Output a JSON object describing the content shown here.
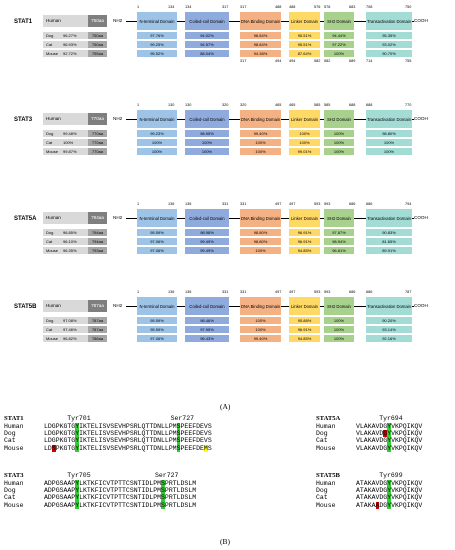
{
  "panel_a_caption": "(A)",
  "panel_b_caption": "(B)",
  "labels": {
    "nh2": "NH2",
    "cooh": "COOH",
    "species_header": "Human"
  },
  "domain_names": {
    "nt": "N-terminal Domain",
    "cc": "Coiled-coil Domain",
    "db": "DNA Binding Domain",
    "lk": "Linker Domain",
    "sh": "SH2 Domain",
    "ta": "Transactivation Domain"
  },
  "stat1": {
    "name": "STAT1",
    "human_aa": "750aa",
    "top_pos": [
      "1",
      "134",
      "134",
      "317",
      "317",
      "488",
      "488",
      "576",
      "576",
      "683",
      "708",
      "750"
    ],
    "bottom_pos": [
      "317",
      "494",
      "494",
      "582",
      "582",
      "689",
      "714",
      "755"
    ],
    "species": [
      {
        "name": "Dog",
        "pct": "96.27%",
        "aa": "750aa",
        "vals": [
          "97.76%",
          "94.02%",
          "98.84%",
          "95.51%",
          "94.44%",
          "95.35%"
        ]
      },
      {
        "name": "Cat",
        "pct": "96.93%",
        "aa": "750aa",
        "vals": [
          "99.25%",
          "94.57%",
          "98.84%",
          "95.51%",
          "97.22%",
          "93.02%"
        ]
      },
      {
        "name": "Mouse",
        "pct": "92.72%",
        "aa": "755aa",
        "vals": [
          "95.52%",
          "88.04%",
          "94.38%",
          "87.64%",
          "100%",
          "90.70%"
        ]
      }
    ]
  },
  "stat3": {
    "name": "STAT3",
    "human_aa": "770aa",
    "top_pos": [
      "1",
      "130",
      "130",
      "320",
      "320",
      "465",
      "465",
      "585",
      "585",
      "688",
      "688",
      "770"
    ],
    "species": [
      {
        "name": "Dog",
        "pct": "99.48%",
        "aa": "770aa",
        "vals": [
          "99.23%",
          "98.95%",
          "99.40%",
          "100%",
          "100%",
          "98.80%"
        ]
      },
      {
        "name": "Cat",
        "pct": "100%",
        "aa": "770aa",
        "vals": [
          "100%",
          "100%",
          "100%",
          "100%",
          "100%",
          "100%"
        ]
      },
      {
        "name": "Mouse",
        "pct": "99.87%",
        "aa": "770aa",
        "vals": [
          "100%",
          "100%",
          "100%",
          "99.01%",
          "100%",
          "100%"
        ]
      }
    ]
  },
  "stat5a": {
    "name": "STAT5A",
    "human_aa": "794aa",
    "top_pos": [
      "1",
      "136",
      "136",
      "331",
      "331",
      "497",
      "497",
      "593",
      "593",
      "686",
      "686",
      "794"
    ],
    "species": [
      {
        "name": "Dog",
        "pct": "96.85%",
        "aa": "794aa",
        "vals": [
          "95.59%",
          "98.98%",
          "98.80%",
          "96.91%",
          "97.87%",
          "90.83%"
        ]
      },
      {
        "name": "Cat",
        "pct": "96.10%",
        "aa": "794aa",
        "vals": [
          "97.06%",
          "99.49%",
          "98.80%",
          "96.91%",
          "98.94%",
          "81.65%"
        ]
      },
      {
        "name": "Mouse",
        "pct": "96.35%",
        "aa": "793aa",
        "vals": [
          "97.06%",
          "99.49%",
          "100%",
          "94.85%",
          "96.81%",
          "89.91%"
        ]
      }
    ]
  },
  "stat5b": {
    "name": "STAT5B",
    "human_aa": "787aa",
    "top_pos": [
      "1",
      "136",
      "136",
      "331",
      "331",
      "497",
      "497",
      "593",
      "593",
      "686",
      "686",
      "787"
    ],
    "species": [
      {
        "name": "Dog",
        "pct": "97.08%",
        "aa": "787aa",
        "vals": [
          "95.59%",
          "98.46%",
          "100%",
          "95.88%",
          "100%",
          "90.20%"
        ]
      },
      {
        "name": "Cat",
        "pct": "97.46%",
        "aa": "787aa",
        "vals": [
          "95.59%",
          "97.95%",
          "100%",
          "96.91%",
          "100%",
          "93.14%"
        ]
      },
      {
        "name": "Mouse",
        "pct": "96.82%",
        "aa": "786aa",
        "vals": [
          "97.06%",
          "96.43%",
          "99.40%",
          "94.85%",
          "100%",
          "92.16%"
        ]
      }
    ]
  },
  "alignments": {
    "stat1": {
      "title": "STAT1",
      "site1": "Tyr701",
      "site2": "Ser727",
      "rows": [
        {
          "sp": "Human",
          "seq": "LDGPKGTGYIKTELISVSEVHPSRLQTTDNLLPMSPEEFDEVS"
        },
        {
          "sp": "Dog",
          "seq": "LDGPKGTGYIKTELISVSEVHPSRLQTTDNLLPMSPEEFDEVS"
        },
        {
          "sp": "Cat",
          "seq": "LDGPKGTGYIKTELISVSEVHPSRLQTTDNLLPMSPEEFDEVS"
        },
        {
          "sp": "Mouse",
          "seq": "LDSPKGTGYIKTELISVSEVHPSRLQTTDNLLPMSPEEFDEMS"
        }
      ]
    },
    "stat3": {
      "title": "STAT3",
      "site1": "Tyr705",
      "site2": "Ser727",
      "rows": [
        {
          "sp": "Human",
          "seq": "ADPGSAAPYLKTKFICVTPTTCSNTIDLPMSPRTLDSLM"
        },
        {
          "sp": "Dog",
          "seq": "ADPGSAAPYLKTKFICVTPTTCSNTIDLPMSPRTLDSLM"
        },
        {
          "sp": "Cat",
          "seq": "ADPGSAAPYLKTKFICVTPTTCSNTIDLPMSPRTLDSLM"
        },
        {
          "sp": "Mouse",
          "seq": "ADPGSAAPYLKTKFICVTPTTCSNTIDLPMSPRTLDSLM"
        }
      ]
    },
    "stat5a": {
      "title": "STAT5A",
      "site1": "Tyr694",
      "rows": [
        {
          "sp": "Human",
          "seq": "VLAKAVDGYVKPQIKQV"
        },
        {
          "sp": "Dog",
          "seq": "VLAKAVDGYVKPQIKQV"
        },
        {
          "sp": "Cat",
          "seq": "VLAKAVDGYVKPQIKQV"
        },
        {
          "sp": "Mouse",
          "seq": "VLAKAVDGYVKPQIKQV"
        }
      ]
    },
    "stat5b": {
      "title": "STAT5B",
      "site1": "Tyr699",
      "rows": [
        {
          "sp": "Human",
          "seq": "ATAKAVDGYVKPQIKQV"
        },
        {
          "sp": "Dog",
          "seq": "ATAKAVDGYVKPQIKQV"
        },
        {
          "sp": "Cat",
          "seq": "ATAKAVDGYVKPQIKQV"
        },
        {
          "sp": "Mouse",
          "seq": "ATAKAADGYVKPQIKQV"
        }
      ]
    }
  }
}
